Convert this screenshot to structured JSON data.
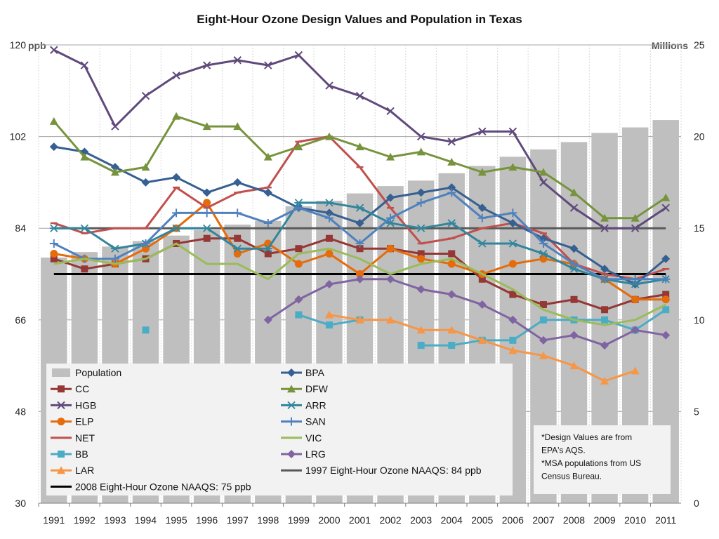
{
  "chart_data": {
    "type": "line",
    "title": "Eight-Hour Ozone Design Values and Population in Texas",
    "y_unit_left": "ppb",
    "y_unit_right": "Millions",
    "ylim_left": [
      30,
      120
    ],
    "ylim_right": [
      0,
      25
    ],
    "yticks_left": [
      "30",
      "48",
      "66",
      "84",
      "102",
      "120"
    ],
    "yticks_right": [
      "0",
      "5",
      "10",
      "15",
      "20",
      "25"
    ],
    "categories": [
      "1991",
      "1992",
      "1993",
      "1994",
      "1995",
      "1996",
      "1997",
      "1998",
      "1999",
      "2000",
      "2001",
      "2002",
      "2003",
      "2004",
      "2005",
      "2006",
      "2007",
      "2008",
      "2009",
      "2010",
      "2011"
    ],
    "grid": "horizontal major gridlines",
    "legend_position": "bottom-left",
    "population": {
      "name": "Population",
      "color": "#bfbfbf",
      "values": [
        13.4,
        13.7,
        14.0,
        14.3,
        14.6,
        14.9,
        15.2,
        15.4,
        16.2,
        16.5,
        16.9,
        17.3,
        17.6,
        18.0,
        18.4,
        18.9,
        19.3,
        19.7,
        20.2,
        20.5,
        20.9
      ]
    },
    "series": [
      {
        "name": "CC",
        "color": "#953735",
        "marker": "square",
        "values": [
          78,
          76,
          77,
          78,
          81,
          82,
          82,
          79,
          80,
          82,
          80,
          80,
          79,
          79,
          74,
          71,
          69,
          70,
          68,
          70,
          71
        ]
      },
      {
        "name": "HGB",
        "color": "#604a7b",
        "marker": "x",
        "values": [
          119,
          116,
          104,
          110,
          114,
          116,
          117,
          116,
          118,
          112,
          110,
          107,
          102,
          101,
          103,
          103,
          93,
          88,
          84,
          84,
          88
        ]
      },
      {
        "name": "ELP",
        "color": "#e46c0a",
        "marker": "circle",
        "values": [
          79,
          78,
          77,
          80,
          84,
          89,
          79,
          81,
          77,
          79,
          75,
          80,
          78,
          77,
          75,
          77,
          78,
          77,
          74,
          70,
          70
        ]
      },
      {
        "name": "NET",
        "color": "#c0504d",
        "marker": "dash",
        "values": [
          85,
          83,
          84,
          84,
          92,
          88,
          91,
          92,
          101,
          102,
          96,
          88,
          81,
          82,
          84,
          85,
          83,
          77,
          75,
          74,
          76
        ]
      },
      {
        "name": "BB",
        "color": "#4bacc6",
        "marker": "square",
        "values": [
          null,
          null,
          null,
          64,
          null,
          null,
          null,
          null,
          67,
          65,
          66,
          null,
          61,
          61,
          62,
          62,
          66,
          66,
          66,
          64,
          68
        ]
      },
      {
        "name": "LAR",
        "color": "#f79646",
        "marker": "triangle",
        "values": [
          null,
          null,
          null,
          null,
          null,
          null,
          null,
          null,
          null,
          67,
          66,
          66,
          64,
          64,
          62,
          60,
          59,
          57,
          54,
          56,
          null
        ]
      },
      {
        "name": "BPA",
        "color": "#366092",
        "marker": "diamond",
        "values": [
          100,
          99,
          96,
          93,
          94,
          91,
          93,
          91,
          88,
          87,
          85,
          90,
          91,
          92,
          88,
          85,
          82,
          80,
          76,
          73,
          78
        ]
      },
      {
        "name": "DFW",
        "color": "#77933c",
        "marker": "triangle",
        "values": [
          105,
          98,
          95,
          96,
          106,
          104,
          104,
          98,
          100,
          102,
          100,
          98,
          99,
          97,
          95,
          96,
          95,
          91,
          86,
          86,
          90
        ]
      },
      {
        "name": "ARR",
        "color": "#31859c",
        "marker": "asterisk",
        "values": [
          84,
          84,
          80,
          81,
          84,
          84,
          80,
          80,
          89,
          89,
          88,
          85,
          84,
          85,
          81,
          81,
          79,
          76,
          74,
          73,
          74
        ]
      },
      {
        "name": "SAN",
        "color": "#4f81bd",
        "marker": "plus",
        "values": [
          81,
          78,
          78,
          81,
          87,
          87,
          87,
          85,
          88,
          86,
          81,
          86,
          89,
          91,
          86,
          87,
          81,
          77,
          74,
          74,
          74
        ]
      },
      {
        "name": "VIC",
        "color": "#9bbb59",
        "marker": "none",
        "values": [
          77,
          78,
          77,
          78,
          81,
          77,
          77,
          74,
          79,
          80,
          78,
          75,
          77,
          78,
          75,
          72,
          68,
          66,
          65,
          66,
          69
        ]
      },
      {
        "name": "LRG",
        "color": "#8064a2",
        "marker": "diamond",
        "values": [
          null,
          null,
          null,
          null,
          null,
          null,
          null,
          66,
          70,
          73,
          74,
          74,
          72,
          71,
          69,
          66,
          62,
          63,
          61,
          64,
          63
        ]
      }
    ],
    "reference_lines": [
      {
        "name": "1997 Eight-Hour Ozone NAAQS: 84 ppb",
        "value": 84,
        "color": "#595959"
      },
      {
        "name": "2008 Eight-Hour Ozone NAAQS: 75 ppb",
        "value": 75,
        "color": "#000000"
      }
    ],
    "notes": [
      "*Design Values are from",
      "EPA's AQS.",
      "*MSA populations from US",
      "Census Bureau."
    ]
  }
}
